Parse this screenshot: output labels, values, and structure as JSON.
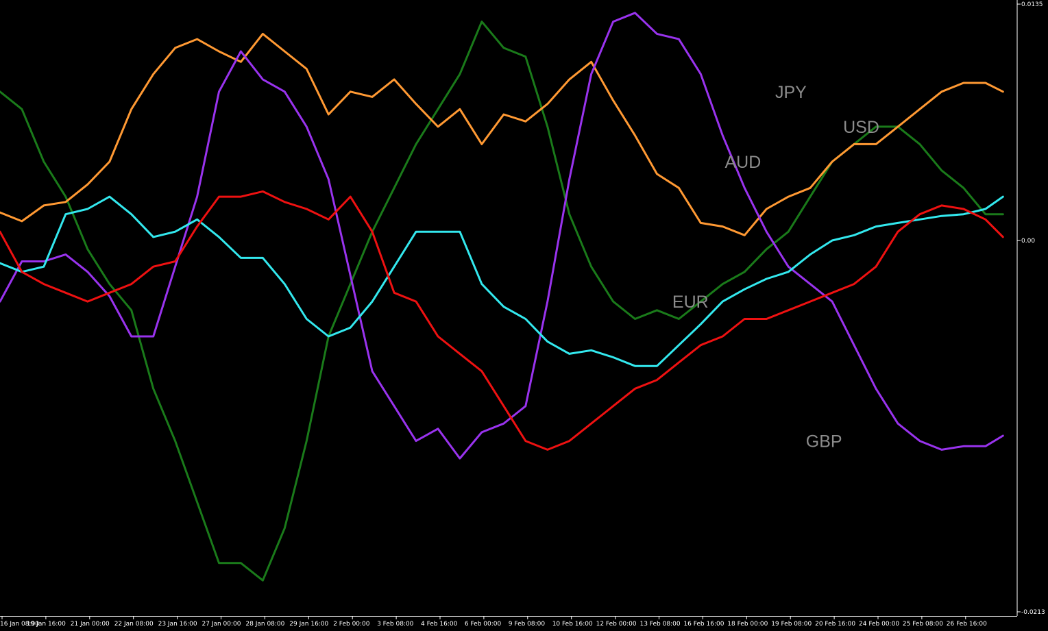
{
  "chart_data": {
    "type": "line",
    "title": "",
    "xlabel": "",
    "ylabel": "",
    "ylim": [
      -0.0213,
      0.0135
    ],
    "grid": false,
    "legend": "inline labels",
    "y_ticks": [
      "0.0135",
      "0.00",
      "-0.0213"
    ],
    "x_ticks": [
      "16 Jan 08:00",
      "19 Jan 16:00",
      "21 Jan 00:00",
      "22 Jan 08:00",
      "23 Jan 16:00",
      "27 Jan 00:00",
      "28 Jan 08:00",
      "29 Jan 16:00",
      "2 Feb 00:00",
      "3 Feb 08:00",
      "4 Feb 16:00",
      "6 Feb 00:00",
      "9 Feb 08:00",
      "10 Feb 16:00",
      "12 Feb 00:00",
      "13 Feb 08:00",
      "16 Feb 16:00",
      "18 Feb 00:00",
      "19 Feb 08:00",
      "20 Feb 16:00",
      "24 Feb 00:00",
      "25 Feb 08:00",
      "26 Feb 16:00"
    ],
    "x": [
      0,
      0.5,
      1,
      1.5,
      2,
      2.5,
      3,
      3.5,
      4,
      4.5,
      5,
      5.5,
      6,
      6.5,
      7,
      7.5,
      8,
      8.5,
      9,
      9.5,
      10,
      10.5,
      11,
      11.5,
      12,
      12.5,
      13,
      13.5,
      14,
      14.5,
      15,
      15.5,
      16,
      16.5,
      17,
      17.5,
      18,
      18.5,
      19,
      19.5,
      20,
      20.5,
      21,
      21.5,
      22,
      22.5,
      22.9
    ],
    "series": [
      {
        "name": "USD",
        "color": "#1a7a1a",
        "values": [
          0.0085,
          0.0075,
          0.0045,
          0.0025,
          -0.0005,
          -0.0025,
          -0.004,
          -0.0085,
          -0.0115,
          -0.015,
          -0.0185,
          -0.0185,
          -0.0195,
          -0.0165,
          -0.0115,
          -0.0055,
          -0.0025,
          0.0005,
          0.003,
          0.0055,
          0.0075,
          0.0095,
          0.0125,
          0.011,
          0.0105,
          0.0065,
          0.0015,
          -0.0015,
          -0.0035,
          -0.0045,
          -0.004,
          -0.0045,
          -0.0035,
          -0.0025,
          -0.0018,
          -0.0005,
          0.0005,
          0.0025,
          0.0045,
          0.0055,
          0.0065,
          0.0065,
          0.0055,
          0.004,
          0.003,
          0.0015,
          0.0015
        ]
      },
      {
        "name": "AUD",
        "color": "#ff9933",
        "values": [
          0.0016,
          0.0011,
          0.002,
          0.0022,
          0.0032,
          0.0045,
          0.0075,
          0.0095,
          0.011,
          0.0115,
          0.0108,
          0.0102,
          0.0118,
          0.0108,
          0.0098,
          0.0072,
          0.0085,
          0.0082,
          0.0092,
          0.0078,
          0.0065,
          0.0075,
          0.0055,
          0.0072,
          0.0068,
          0.0078,
          0.0092,
          0.0102,
          0.008,
          0.006,
          0.0038,
          0.003,
          0.001,
          0.0008,
          0.0003,
          0.0018,
          0.0025,
          0.003,
          0.0045,
          0.0055,
          0.0055,
          0.0065,
          0.0075,
          0.0085,
          0.009,
          0.009,
          0.0085
        ]
      },
      {
        "name": "JPY",
        "color": "#9933ee",
        "values": [
          -0.0035,
          -0.0012,
          -0.0012,
          -0.0008,
          -0.0018,
          -0.0032,
          -0.0055,
          -0.0055,
          -0.0015,
          0.0025,
          0.0085,
          0.0108,
          0.0092,
          0.0085,
          0.0065,
          0.0035,
          -0.002,
          -0.0075,
          -0.0095,
          -0.0115,
          -0.0108,
          -0.0125,
          -0.011,
          -0.0105,
          -0.0095,
          -0.0035,
          0.0035,
          0.0095,
          0.0125,
          0.013,
          0.0118,
          0.0115,
          0.0095,
          0.006,
          0.003,
          0.0005,
          -0.0015,
          -0.0025,
          -0.0035,
          -0.006,
          -0.0085,
          -0.0105,
          -0.0115,
          -0.012,
          -0.0118,
          -0.0118,
          -0.0112
        ]
      },
      {
        "name": "EUR",
        "color": "#33e8ee",
        "values": [
          -0.0013,
          -0.0018,
          -0.0015,
          0.0015,
          0.0018,
          0.0025,
          0.0015,
          0.0002,
          0.0005,
          0.0012,
          0.0002,
          -0.001,
          -0.001,
          -0.0025,
          -0.0045,
          -0.0055,
          -0.005,
          -0.0035,
          -0.0015,
          0.0005,
          0.0005,
          0.0005,
          -0.0025,
          -0.0038,
          -0.0045,
          -0.0058,
          -0.0065,
          -0.0063,
          -0.0067,
          -0.0072,
          -0.0072,
          -0.006,
          -0.0048,
          -0.0035,
          -0.0028,
          -0.0022,
          -0.0018,
          -0.0008,
          0.0,
          0.0003,
          0.0008,
          0.001,
          0.0012,
          0.0014,
          0.0015,
          0.0018,
          0.0025
        ]
      },
      {
        "name": "GBP",
        "color": "#ee1111",
        "values": [
          0.0005,
          -0.0018,
          -0.0025,
          -0.003,
          -0.0035,
          -0.003,
          -0.0025,
          -0.0015,
          -0.0012,
          0.0008,
          0.0025,
          0.0025,
          0.0028,
          0.0022,
          0.0018,
          0.0012,
          0.0025,
          0.0005,
          -0.003,
          -0.0035,
          -0.0055,
          -0.0065,
          -0.0075,
          -0.0095,
          -0.0115,
          -0.012,
          -0.0115,
          -0.0105,
          -0.0095,
          -0.0085,
          -0.008,
          -0.007,
          -0.006,
          -0.0055,
          -0.0045,
          -0.0045,
          -0.004,
          -0.0035,
          -0.003,
          -0.0025,
          -0.0015,
          0.0005,
          0.0015,
          0.002,
          0.0018,
          0.0012,
          0.0002
        ]
      }
    ],
    "labels": [
      {
        "text": "JPY",
        "x": 17.7,
        "y": 0.0085
      },
      {
        "text": "USD",
        "x": 19.25,
        "y": 0.0065
      },
      {
        "text": "AUD",
        "x": 16.55,
        "y": 0.0045
      },
      {
        "text": "EUR",
        "x": 15.35,
        "y": -0.0035
      },
      {
        "text": "GBP",
        "x": 18.4,
        "y": -0.0115
      }
    ]
  }
}
